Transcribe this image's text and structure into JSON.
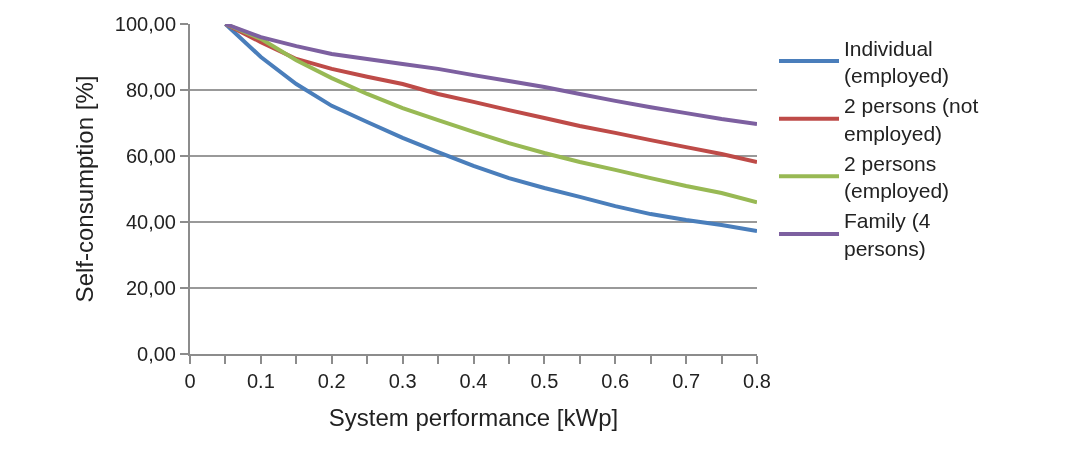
{
  "chart_data": {
    "type": "line",
    "xlabel": "System performance [kWp]",
    "ylabel": "Self-consumption [%]",
    "x": [
      0.05,
      0.1,
      0.15,
      0.2,
      0.25,
      0.3,
      0.35,
      0.4,
      0.45,
      0.5,
      0.55,
      0.6,
      0.65,
      0.7,
      0.75,
      0.8
    ],
    "series": [
      {
        "name": "Individual (employed)",
        "color": "#4a7ebb",
        "values": [
          100,
          90,
          81.8,
          75.2,
          70.3,
          65.5,
          61.2,
          57,
          53.3,
          50.3,
          47.6,
          44.8,
          42.4,
          40.6,
          39.1,
          37.3
        ]
      },
      {
        "name": "2 persons (not employed)",
        "color": "#be4b48",
        "values": [
          100,
          94.5,
          89.4,
          86.4,
          84,
          81.8,
          78.8,
          76.4,
          73.9,
          71.5,
          69.1,
          67,
          64.8,
          62.7,
          60.6,
          58.2
        ]
      },
      {
        "name": "2 persons (employed)",
        "color": "#98b954",
        "values": [
          100,
          95.5,
          89,
          83.6,
          78.8,
          74.5,
          70.9,
          67.3,
          63.9,
          60.9,
          58.2,
          55.8,
          53.3,
          50.9,
          48.8,
          46
        ]
      },
      {
        "name": "Family (4 persons)",
        "color": "#7d60a0",
        "values": [
          100,
          96,
          93.3,
          90.9,
          89.4,
          87.9,
          86.4,
          84.5,
          82.7,
          80.9,
          78.8,
          76.7,
          74.8,
          73,
          71.2,
          69.7
        ]
      }
    ],
    "xlim": [
      0,
      0.8
    ],
    "xticks": [
      0,
      {
        "value": 0.05,
        "label": null
      },
      0.1,
      {
        "value": 0.15,
        "label": null
      },
      0.2,
      {
        "value": 0.25,
        "label": null
      },
      0.3,
      {
        "value": 0.35,
        "label": null
      },
      0.4,
      {
        "value": 0.45,
        "label": null
      },
      0.5,
      {
        "value": 0.55,
        "label": null
      },
      0.6,
      {
        "value": 0.65,
        "label": null
      },
      0.7,
      {
        "value": 0.75,
        "label": null
      },
      0.8
    ],
    "ylim": [
      0,
      100
    ],
    "yticks": [
      {
        "value": 0,
        "label": "0,00"
      },
      {
        "value": 20,
        "label": "20,00"
      },
      {
        "value": 40,
        "label": "40,00"
      },
      {
        "value": 60,
        "label": "60,00"
      },
      {
        "value": 80,
        "label": "80,00"
      },
      {
        "value": 100,
        "label": "100,00"
      }
    ],
    "grid": "y",
    "legend": "right",
    "marker": "none",
    "line_style": "solid"
  }
}
